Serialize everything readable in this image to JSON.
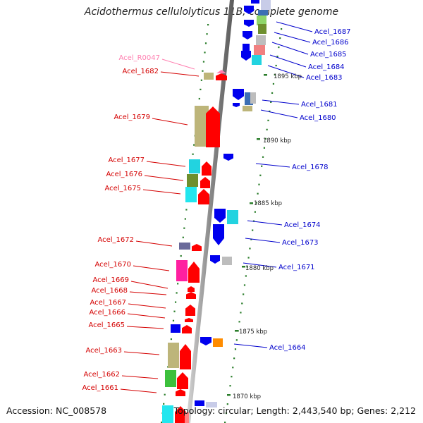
{
  "map": {
    "title": "Acidothermus cellulolyticus 11B, complete genome",
    "accession": "Accession: NC_008578",
    "summary": "Topology: circular; Length: 2,443,540 bp; Genes: 2,212"
  },
  "colors": {
    "backbone": "#8c8c8c",
    "forward_label": "#d40000",
    "reverse_label": "#0000cc",
    "rna_label": "#ff7fb0",
    "tick": "#2a7d2a",
    "forward_gene": "#ff0000",
    "reverse_gene": "#0000ee"
  },
  "ruler": [
    {
      "label": "1895 kbp"
    },
    {
      "label": "1890 kbp"
    },
    {
      "label": "1885 kbp"
    },
    {
      "label": "1880 kbp"
    },
    {
      "label": "1875 kbp"
    },
    {
      "label": "1870 kbp"
    }
  ],
  "left_labels": [
    {
      "text": "Acel_R0047",
      "kind": "rna"
    },
    {
      "text": "Acel_1682",
      "kind": "forward"
    },
    {
      "text": "Acel_1679",
      "kind": "forward"
    },
    {
      "text": "Acel_1677",
      "kind": "forward"
    },
    {
      "text": "Acel_1676",
      "kind": "forward"
    },
    {
      "text": "Acel_1675",
      "kind": "forward"
    },
    {
      "text": "Acel_1672",
      "kind": "forward"
    },
    {
      "text": "Acel_1670",
      "kind": "forward"
    },
    {
      "text": "Acel_1669",
      "kind": "forward"
    },
    {
      "text": "Acel_1668",
      "kind": "forward"
    },
    {
      "text": "Acel_1667",
      "kind": "forward"
    },
    {
      "text": "Acel_1666",
      "kind": "forward"
    },
    {
      "text": "Acel_1665",
      "kind": "forward"
    },
    {
      "text": "Acel_1663",
      "kind": "forward"
    },
    {
      "text": "Acel_1662",
      "kind": "forward"
    },
    {
      "text": "Acel_1661",
      "kind": "forward"
    }
  ],
  "right_labels": [
    {
      "text": "Acel_1687",
      "kind": "reverse"
    },
    {
      "text": "Acel_1686",
      "kind": "reverse"
    },
    {
      "text": "Acel_1685",
      "kind": "reverse"
    },
    {
      "text": "Acel_1684",
      "kind": "reverse"
    },
    {
      "text": "Acel_1683",
      "kind": "reverse"
    },
    {
      "text": "Acel_1681",
      "kind": "reverse"
    },
    {
      "text": "Acel_1680",
      "kind": "reverse"
    },
    {
      "text": "Acel_1678",
      "kind": "reverse"
    },
    {
      "text": "Acel_1674",
      "kind": "reverse"
    },
    {
      "text": "Acel_1673",
      "kind": "reverse"
    },
    {
      "text": "Acel_1671",
      "kind": "reverse"
    },
    {
      "text": "Acel_1664",
      "kind": "reverse"
    }
  ]
}
